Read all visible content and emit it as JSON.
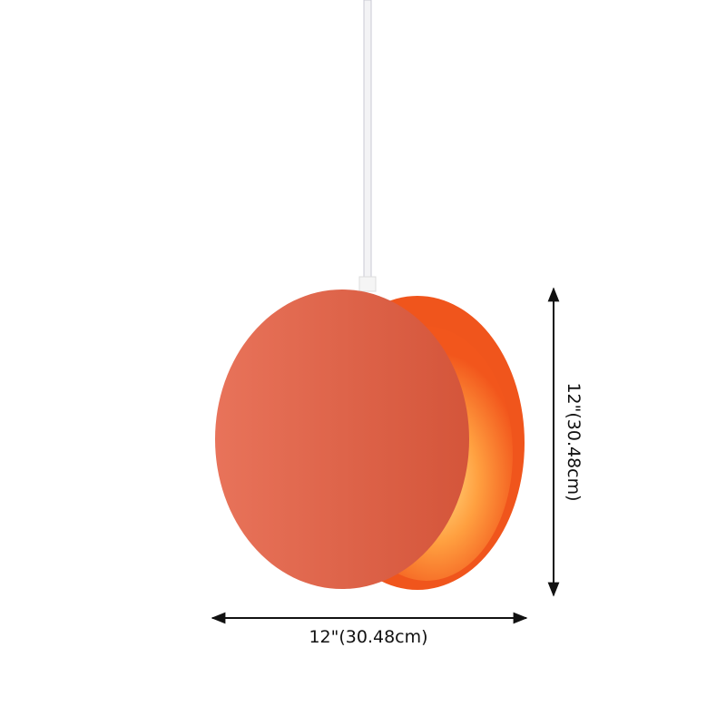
{
  "product": {
    "width_label": "12\"(30.48cm)",
    "height_label": "12\"(30.48cm)"
  },
  "colors": {
    "front_disc": "#dc6446",
    "rear_disc": "#f26a2a",
    "glow": "#ffd070",
    "cord": "#f2f2f4",
    "dimension_line": "#111111"
  }
}
